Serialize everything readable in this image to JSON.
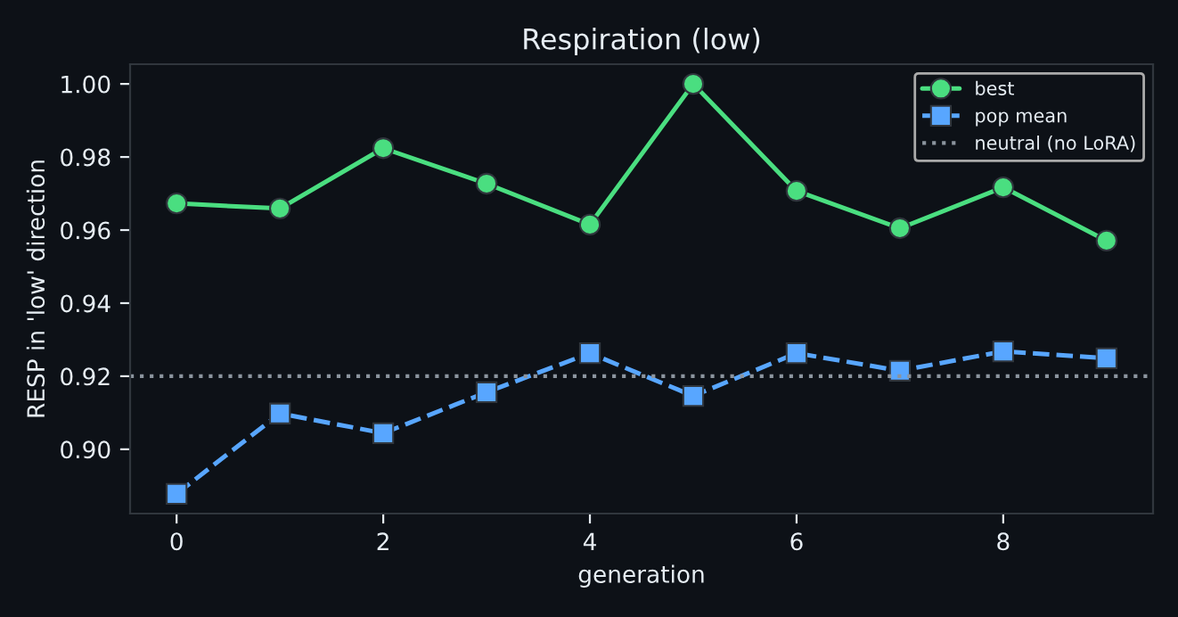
{
  "chart_data": {
    "type": "line",
    "title": "Respiration (low)",
    "xlabel": "generation",
    "ylabel": "RESP in 'low' direction",
    "x": [
      0,
      1,
      2,
      3,
      4,
      5,
      6,
      7,
      8,
      9
    ],
    "series": [
      {
        "name": "best",
        "color": "#4ade80",
        "marker": "circle",
        "line_style": "solid",
        "values": [
          0.9673,
          0.9659,
          0.9824,
          0.9727,
          0.9615,
          1.0,
          0.9707,
          0.9605,
          0.9717,
          0.9571
        ]
      },
      {
        "name": "pop mean",
        "color": "#58a6ff",
        "marker": "square",
        "line_style": "dashed",
        "values": [
          0.8878,
          0.9098,
          0.9044,
          0.9156,
          0.9263,
          0.9146,
          0.9263,
          0.9215,
          0.9268,
          0.9249
        ]
      }
    ],
    "ref_lines": [
      {
        "axis": "y",
        "value": 0.92,
        "label": "neutral (no LoRA)",
        "color": "#8b949e",
        "line_style": "dotted"
      }
    ],
    "xlim": [
      -0.45,
      9.45
    ],
    "ylim": [
      0.8824,
      1.0054
    ],
    "xticks": [
      0,
      2,
      4,
      6,
      8
    ],
    "yticks": [
      {
        "value": 0.9,
        "label": "0.90"
      },
      {
        "value": 0.92,
        "label": "0.92"
      },
      {
        "value": 0.94,
        "label": "0.94"
      },
      {
        "value": 0.96,
        "label": "0.96"
      },
      {
        "value": 0.98,
        "label": "0.98"
      },
      {
        "value": 1.0,
        "label": "1.00"
      }
    ],
    "grid": false,
    "legend": "top right"
  }
}
